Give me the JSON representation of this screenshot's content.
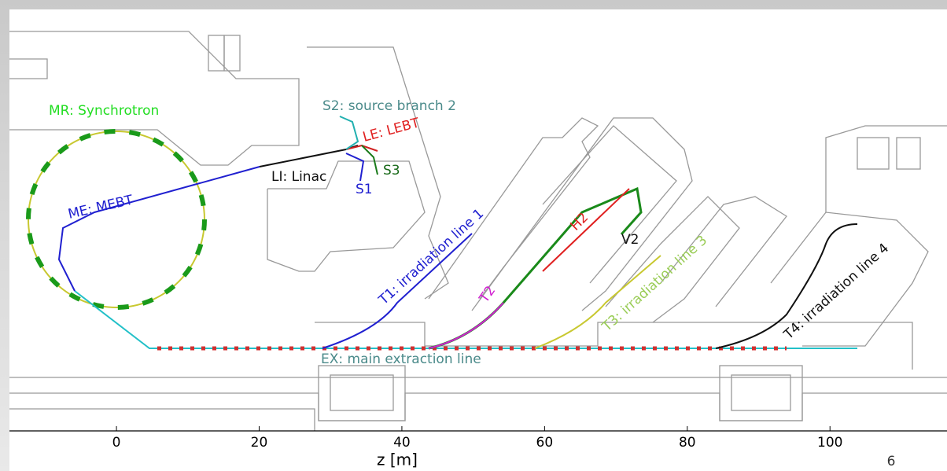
{
  "labels": [
    "MR: Synchrotron",
    "S2: source branch 2",
    "LE: LEBT",
    "LI: Linac",
    "S1",
    "S3",
    "ME: MEBT",
    "T1: irradiation line 1",
    "H2",
    "V2",
    "T2",
    "T3: irradiation line 3",
    "T4: irradiation line 4",
    "EX: main extraction line"
  ],
  "axis": {
    "label": "z [m]",
    "xlim": [
      -15,
      116.4
    ],
    "ticks": [
      0,
      20,
      40,
      60,
      80,
      100
    ]
  },
  "page_number": "6"
}
